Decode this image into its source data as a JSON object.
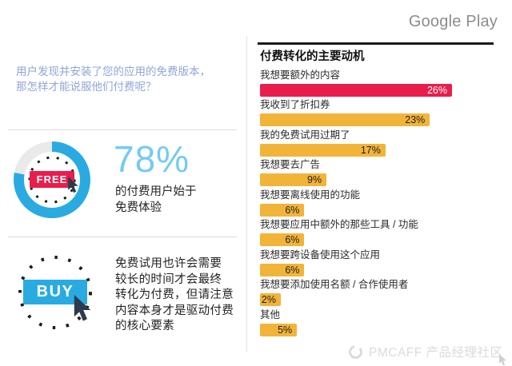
{
  "header": {
    "brand": "Google Play"
  },
  "left_panel": {
    "intro": "用户发现并安装了您的应用的免费版本，\n那怎样才能说服他们付费呢？",
    "free_section": {
      "badge_label": "FREE",
      "percent_stat": "78%",
      "ring_percent": 78,
      "caption": "的付费用户始于\n免费体验"
    },
    "buy_section": {
      "badge_label": "BUY",
      "note": "免费试用也许会需要\n较长的时间才会最终\n转化为付费，但请注意\n内容本身才是驱动付费\n的核心要素"
    }
  },
  "chart_data": {
    "type": "bar",
    "orientation": "horizontal",
    "title": "付费转化的主要动机",
    "categories": [
      "我想要额外的内容",
      "我收到了折扣券",
      "我的免费试用过期了",
      "我想要去广告",
      "我想要离线使用的功能",
      "我想要应用中额外的那些工具 / 功能",
      "我想要跨设备使用这个应用",
      "我想要添加使用名额 / 合作使用者",
      "其他"
    ],
    "values": [
      26,
      23,
      17,
      9,
      6,
      6,
      6,
      2,
      5
    ],
    "value_labels": [
      "26%",
      "23%",
      "17%",
      "9%",
      "6%",
      "6%",
      "6%",
      "2%",
      "5%"
    ],
    "bar_colors": [
      "#E91D4C",
      "#F2B438",
      "#F2B438",
      "#F2B438",
      "#F2B438",
      "#F2B438",
      "#F2B438",
      "#F2B438",
      "#F2B438"
    ],
    "value_text_colors": [
      "#FFFFFF",
      "#1F1F1F",
      "#1F1F1F",
      "#1F1F1F",
      "#1F1F1F",
      "#1F1F1F",
      "#1F1F1F",
      "#1F1F1F",
      "#1F1F1F"
    ],
    "xlim": [
      0,
      26
    ],
    "grid": false,
    "legend": false
  },
  "watermark": {
    "text": "PMCAFF 产品经理社区"
  },
  "colors": {
    "accent_red": "#E91D4C",
    "accent_yellow": "#F2B438",
    "accent_blue": "#29ABE2",
    "ring_gap_gray": "#EAEAEA",
    "stat_blue": "#74CBEF",
    "intro_blue": "#8FA5D8",
    "cursor_dark": "#2B3B4D",
    "watermark_gray": "#DBDBDB"
  }
}
